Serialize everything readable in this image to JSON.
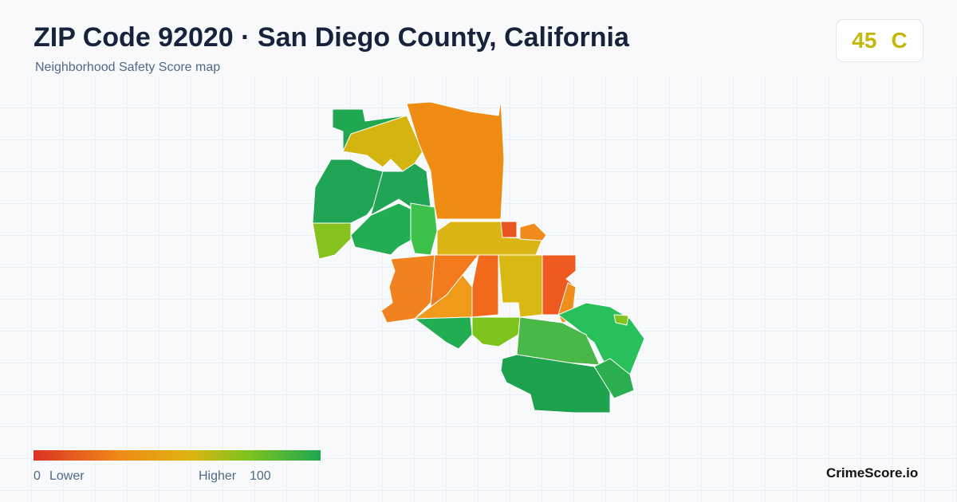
{
  "header": {
    "title": "ZIP Code 92020 · San Diego County, California",
    "subtitle": "Neighborhood Safety Score map"
  },
  "score": {
    "value": 45,
    "grade": "C"
  },
  "legend": {
    "min": 0,
    "min_label": "Lower",
    "max_label": "Higher",
    "max": 100
  },
  "brand": "CrimeScore.io"
}
